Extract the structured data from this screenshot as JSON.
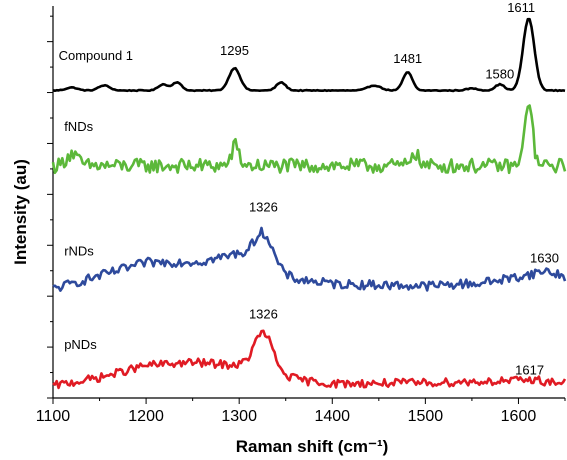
{
  "chart_data": {
    "type": "line",
    "title": "",
    "xlabel": "Raman shift (cm⁻¹)",
    "ylabel": "Intensity (au)",
    "xlim": [
      1100,
      1650
    ],
    "x_ticks": [
      "1100",
      "1200",
      "1300",
      "1400",
      "1500",
      "1600"
    ],
    "y_tick_labels": false,
    "grid": false,
    "legend": "none",
    "series": [
      {
        "name": "Compound 1",
        "color": "#000000",
        "level": 0.0,
        "noise": 0.004,
        "baseline": [
          [
            1100,
            0.02
          ],
          [
            1650,
            0.02
          ]
        ],
        "peaks": [
          {
            "x": 1120,
            "h": 0.03,
            "w": 6
          },
          {
            "x": 1155,
            "h": 0.05,
            "w": 6
          },
          {
            "x": 1218,
            "h": 0.06,
            "w": 5
          },
          {
            "x": 1233,
            "h": 0.08,
            "w": 5
          },
          {
            "x": 1295,
            "h": 0.22,
            "w": 6
          },
          {
            "x": 1345,
            "h": 0.08,
            "w": 5
          },
          {
            "x": 1445,
            "h": 0.05,
            "w": 7
          },
          {
            "x": 1481,
            "h": 0.18,
            "w": 5
          },
          {
            "x": 1550,
            "h": 0.02,
            "w": 6
          },
          {
            "x": 1580,
            "h": 0.06,
            "w": 5
          },
          {
            "x": 1611,
            "h": 0.71,
            "w": 6
          }
        ],
        "labels": [
          {
            "text": "Compound 1",
            "x": 1106,
            "y": 0.32
          },
          {
            "text": "1295",
            "x": 1295,
            "y": 0.37
          },
          {
            "text": "1481",
            "x": 1481,
            "y": 0.29
          },
          {
            "text": "1580",
            "x": 1580,
            "y": 0.14
          },
          {
            "text": "1611",
            "x": 1603,
            "y": 0.79
          }
        ]
      },
      {
        "name": "fNDs",
        "color": "#5cb83a",
        "level": -0.78,
        "noise": 0.07,
        "baseline": [
          [
            1100,
            0.06
          ],
          [
            1650,
            0.06
          ]
        ],
        "peaks": [
          {
            "x": 1120,
            "h": 0.12,
            "w": 6
          },
          {
            "x": 1296,
            "h": 0.2,
            "w": 4
          },
          {
            "x": 1488,
            "h": 0.14,
            "w": 4
          },
          {
            "x": 1611,
            "h": 0.65,
            "w": 4
          }
        ],
        "labels": [
          {
            "text": "fNDs",
            "x": 1112,
            "y": 0.4
          }
        ]
      },
      {
        "name": "rNDs",
        "color": "#2e4a9c",
        "level": -1.93,
        "noise": 0.045,
        "baseline": [
          [
            1100,
            0.0
          ],
          [
            1150,
            0.13
          ],
          [
            1200,
            0.26
          ],
          [
            1260,
            0.27
          ],
          [
            1300,
            0.35
          ],
          [
            1345,
            0.15
          ],
          [
            1360,
            0.1
          ],
          [
            1400,
            0.05
          ],
          [
            1500,
            0.03
          ],
          [
            1560,
            0.06
          ],
          [
            1600,
            0.12
          ],
          [
            1630,
            0.18
          ],
          [
            1650,
            0.12
          ]
        ],
        "peaks": [
          {
            "x": 1326,
            "h": 0.32,
            "w": 10
          }
        ],
        "labels": [
          {
            "text": "rNDs",
            "x": 1112,
            "y": 0.33
          },
          {
            "text": "1326",
            "x": 1326,
            "y": 0.76
          },
          {
            "text": "1630",
            "x": 1628,
            "y": 0.26
          }
        ]
      },
      {
        "name": "pNDs",
        "color": "#e01b24",
        "level": -2.88,
        "noise": 0.04,
        "baseline": [
          [
            1100,
            0.0
          ],
          [
            1150,
            0.08
          ],
          [
            1200,
            0.2
          ],
          [
            1250,
            0.23
          ],
          [
            1300,
            0.2
          ],
          [
            1345,
            0.1
          ],
          [
            1370,
            0.05
          ],
          [
            1400,
            0.02
          ],
          [
            1500,
            0.03
          ],
          [
            1600,
            0.05
          ],
          [
            1650,
            0.03
          ]
        ],
        "peaks": [
          {
            "x": 1326,
            "h": 0.38,
            "w": 10
          },
          {
            "x": 1617,
            "h": 0.02,
            "w": 6
          }
        ],
        "labels": [
          {
            "text": "pNDs",
            "x": 1112,
            "y": 0.36
          },
          {
            "text": "1326",
            "x": 1326,
            "y": 0.66
          },
          {
            "text": "1617",
            "x": 1612,
            "y": 0.11
          }
        ]
      }
    ]
  }
}
